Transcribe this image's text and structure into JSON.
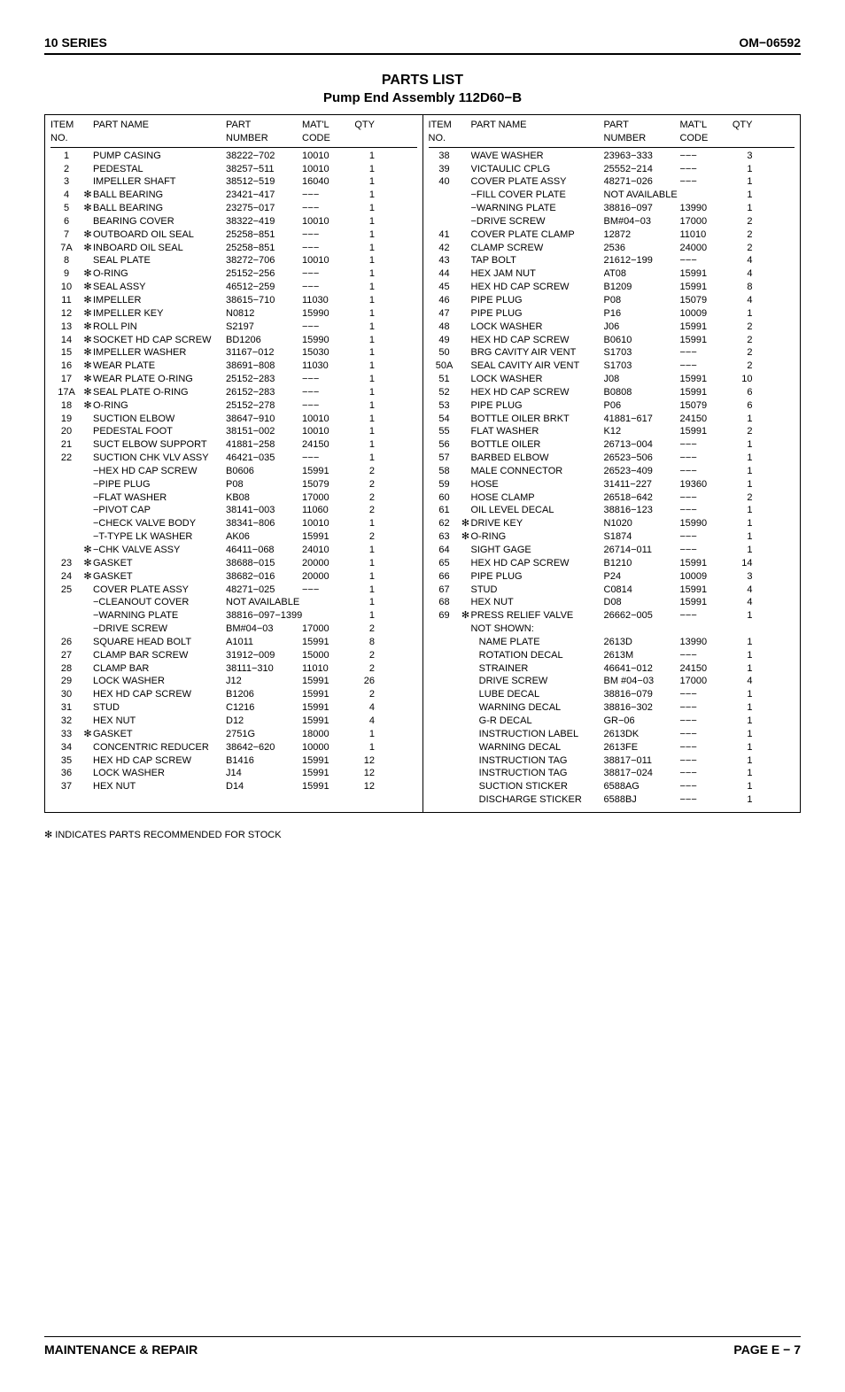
{
  "header": {
    "left": "10 SERIES",
    "right": "OM−06592"
  },
  "titles": {
    "line1": "PARTS LIST",
    "line2": "Pump End Assembly 112D60−B"
  },
  "columns": {
    "item": "ITEM\nNO.",
    "name": "PART NAME",
    "part": "PART\nNUMBER",
    "matl": "MAT'L\nCODE",
    "qty": "QTY"
  },
  "left_rows": [
    {
      "item": "1",
      "star": "",
      "name": "PUMP CASING",
      "part": "38222−702",
      "matl": "10010",
      "qty": "1"
    },
    {
      "item": "2",
      "star": "",
      "name": "PEDESTAL",
      "part": "38257−511",
      "matl": "10010",
      "qty": "1"
    },
    {
      "item": "3",
      "star": "",
      "name": "IMPELLER SHAFT",
      "part": "38512−519",
      "matl": "16040",
      "qty": "1"
    },
    {
      "item": "4",
      "star": "✻",
      "name": "BALL BEARING",
      "part": "23421−417",
      "matl": "−−−",
      "qty": "1"
    },
    {
      "item": "5",
      "star": "✻",
      "name": "BALL BEARING",
      "part": "23275−017",
      "matl": "−−−",
      "qty": "1"
    },
    {
      "item": "6",
      "star": "",
      "name": "BEARING COVER",
      "part": "38322−419",
      "matl": "10010",
      "qty": "1"
    },
    {
      "item": "7",
      "star": "✻",
      "name": "OUTBOARD OIL SEAL",
      "part": "25258−851",
      "matl": "−−−",
      "qty": "1"
    },
    {
      "item": "7A",
      "star": "✻",
      "name": "INBOARD OIL SEAL",
      "part": "25258−851",
      "matl": "−−−",
      "qty": "1"
    },
    {
      "item": "8",
      "star": "",
      "name": "SEAL PLATE",
      "part": "38272−706",
      "matl": "10010",
      "qty": "1"
    },
    {
      "item": "9",
      "star": "✻",
      "name": "O-RING",
      "part": "25152−256",
      "matl": "−−−",
      "qty": "1"
    },
    {
      "item": "10",
      "star": "✻",
      "name": "SEAL ASSY",
      "part": "46512−259",
      "matl": "−−−",
      "qty": "1"
    },
    {
      "item": "11",
      "star": "✻",
      "name": "IMPELLER",
      "part": "38615−710",
      "matl": "11030",
      "qty": "1"
    },
    {
      "item": "12",
      "star": "✻",
      "name": "IMPELLER KEY",
      "part": "N0812",
      "matl": "15990",
      "qty": "1"
    },
    {
      "item": "13",
      "star": "✻",
      "name": "ROLL PIN",
      "part": "S2197",
      "matl": "−−−",
      "qty": "1"
    },
    {
      "item": "14",
      "star": "✻",
      "name": "SOCKET HD CAP SCREW",
      "part": "BD1206",
      "matl": "15990",
      "qty": "1"
    },
    {
      "item": "15",
      "star": "✻",
      "name": "IMPELLER WASHER",
      "part": "31167−012",
      "matl": "15030",
      "qty": "1"
    },
    {
      "item": "16",
      "star": "✻",
      "name": "WEAR PLATE",
      "part": "38691−808",
      "matl": "11030",
      "qty": "1"
    },
    {
      "item": "17",
      "star": "✻",
      "name": "WEAR PLATE O-RING",
      "part": "25152−283",
      "matl": "−−−",
      "qty": "1"
    },
    {
      "item": "17A",
      "star": "✻",
      "name": "SEAL PLATE O-RING",
      "part": "26152−283",
      "matl": "−−−",
      "qty": "1"
    },
    {
      "item": "18",
      "star": "✻",
      "name": "O-RING",
      "part": "25152−278",
      "matl": "−−−",
      "qty": "1"
    },
    {
      "item": "19",
      "star": "",
      "name": "SUCTION ELBOW",
      "part": "38647−910",
      "matl": "10010",
      "qty": "1"
    },
    {
      "item": "20",
      "star": "",
      "name": "PEDESTAL FOOT",
      "part": "38151−002",
      "matl": "10010",
      "qty": "1"
    },
    {
      "item": "21",
      "star": "",
      "name": "SUCT ELBOW SUPPORT",
      "part": "41881−258",
      "matl": "24150",
      "qty": "1"
    },
    {
      "item": "22",
      "star": "",
      "name": "SUCTION CHK VLV ASSY",
      "part": "46421−035",
      "matl": "−−−",
      "qty": "1"
    },
    {
      "item": "",
      "star": "",
      "name": "−HEX HD CAP SCREW",
      "part": "B0606",
      "matl": "15991",
      "qty": "2"
    },
    {
      "item": "",
      "star": "",
      "name": "−PIPE PLUG",
      "part": "P08",
      "matl": "15079",
      "qty": "2"
    },
    {
      "item": "",
      "star": "",
      "name": "−FLAT WASHER",
      "part": "KB08",
      "matl": "17000",
      "qty": "2"
    },
    {
      "item": "",
      "star": "",
      "name": "−PIVOT CAP",
      "part": "38141−003",
      "matl": "11060",
      "qty": "2"
    },
    {
      "item": "",
      "star": "",
      "name": "−CHECK VALVE BODY",
      "part": "38341−806",
      "matl": "10010",
      "qty": "1"
    },
    {
      "item": "",
      "star": "",
      "name": "−T-TYPE LK WASHER",
      "part": "AK06",
      "matl": "15991",
      "qty": "2"
    },
    {
      "item": "",
      "star": "✻",
      "name": "−CHK VALVE ASSY",
      "part": "46411−068",
      "matl": "24010",
      "qty": "1"
    },
    {
      "item": "23",
      "star": "✻",
      "name": "GASKET",
      "part": "38688−015",
      "matl": "20000",
      "qty": "1"
    },
    {
      "item": "24",
      "star": "✻",
      "name": "GASKET",
      "part": "38682−016",
      "matl": "20000",
      "qty": "1"
    },
    {
      "item": "25",
      "star": "",
      "name": "COVER PLATE ASSY",
      "part": "48271−025",
      "matl": "−−−",
      "qty": "1"
    },
    {
      "item": "",
      "star": "",
      "name": "−CLEANOUT COVER",
      "part": "NOT AVAILABLE",
      "matl": "",
      "qty": "1"
    },
    {
      "item": "",
      "star": "",
      "name": "−WARNING PLATE",
      "part": "38816−097−13990",
      "matl": "",
      "qty": "1"
    },
    {
      "item": "",
      "star": "",
      "name": "−DRIVE SCREW",
      "part": "BM#04−03",
      "matl": "17000",
      "qty": "2"
    },
    {
      "item": "26",
      "star": "",
      "name": "SQUARE HEAD BOLT",
      "part": "A1011",
      "matl": "15991",
      "qty": "8"
    },
    {
      "item": "27",
      "star": "",
      "name": "CLAMP BAR SCREW",
      "part": "31912−009",
      "matl": "15000",
      "qty": "2"
    },
    {
      "item": "28",
      "star": "",
      "name": "CLAMP BAR",
      "part": "38111−310",
      "matl": "11010",
      "qty": "2"
    },
    {
      "item": "29",
      "star": "",
      "name": "LOCK WASHER",
      "part": "J12",
      "matl": "15991",
      "qty": "26"
    },
    {
      "item": "30",
      "star": "",
      "name": "HEX HD CAP SCREW",
      "part": "B1206",
      "matl": "15991",
      "qty": "2"
    },
    {
      "item": "31",
      "star": "",
      "name": "STUD",
      "part": "C1216",
      "matl": "15991",
      "qty": "4"
    },
    {
      "item": "32",
      "star": "",
      "name": "HEX NUT",
      "part": "D12",
      "matl": "15991",
      "qty": "4"
    },
    {
      "item": "33",
      "star": "✻",
      "name": "GASKET",
      "part": "2751G",
      "matl": "18000",
      "qty": "1"
    },
    {
      "item": "34",
      "star": "",
      "name": "CONCENTRIC REDUCER",
      "part": "38642−620",
      "matl": "10000",
      "qty": "1"
    },
    {
      "item": "35",
      "star": "",
      "name": "HEX HD CAP SCREW",
      "part": "B1416",
      "matl": "15991",
      "qty": "12"
    },
    {
      "item": "36",
      "star": "",
      "name": "LOCK WASHER",
      "part": "J14",
      "matl": "15991",
      "qty": "12"
    },
    {
      "item": "37",
      "star": "",
      "name": "HEX NUT",
      "part": "D14",
      "matl": "15991",
      "qty": "12"
    }
  ],
  "right_rows": [
    {
      "item": "38",
      "star": "",
      "name": "WAVE WASHER",
      "part": "23963−333",
      "matl": "−−−",
      "qty": "3"
    },
    {
      "item": "39",
      "star": "",
      "name": "VICTAULIC CPLG",
      "part": "25552−214",
      "matl": "−−−",
      "qty": "1"
    },
    {
      "item": "40",
      "star": "",
      "name": "COVER PLATE ASSY",
      "part": "48271−026",
      "matl": "−−−",
      "qty": "1"
    },
    {
      "item": "",
      "star": "",
      "name": "−FILL COVER PLATE",
      "part": "NOT AVAILABLE",
      "matl": "",
      "qty": "1"
    },
    {
      "item": "",
      "star": "",
      "name": "−WARNING PLATE",
      "part": "38816−097",
      "matl": "13990",
      "qty": "1"
    },
    {
      "item": "",
      "star": "",
      "name": "−DRIVE SCREW",
      "part": "BM#04−03",
      "matl": "17000",
      "qty": "2"
    },
    {
      "item": "41",
      "star": "",
      "name": "COVER PLATE CLAMP",
      "part": "12872",
      "matl": "11010",
      "qty": "2"
    },
    {
      "item": "42",
      "star": "",
      "name": "CLAMP SCREW",
      "part": "2536",
      "matl": "24000",
      "qty": "2"
    },
    {
      "item": "43",
      "star": "",
      "name": "TAP BOLT",
      "part": "21612−199",
      "matl": "−−−",
      "qty": "4"
    },
    {
      "item": "44",
      "star": "",
      "name": "HEX JAM NUT",
      "part": "AT08",
      "matl": "15991",
      "qty": "4"
    },
    {
      "item": "45",
      "star": "",
      "name": "HEX HD CAP SCREW",
      "part": "B1209",
      "matl": "15991",
      "qty": "8"
    },
    {
      "item": "46",
      "star": "",
      "name": "PIPE PLUG",
      "part": "P08",
      "matl": "15079",
      "qty": "4"
    },
    {
      "item": "47",
      "star": "",
      "name": "PIPE PLUG",
      "part": "P16",
      "matl": "10009",
      "qty": "1"
    },
    {
      "item": "48",
      "star": "",
      "name": "LOCK WASHER",
      "part": "J06",
      "matl": "15991",
      "qty": "2"
    },
    {
      "item": "49",
      "star": "",
      "name": "HEX HD CAP SCREW",
      "part": "B0610",
      "matl": "15991",
      "qty": "2"
    },
    {
      "item": "50",
      "star": "",
      "name": "BRG CAVITY AIR VENT",
      "part": "S1703",
      "matl": "−−−",
      "qty": "2"
    },
    {
      "item": "50A",
      "star": "",
      "name": "SEAL CAVITY AIR VENT",
      "part": "S1703",
      "matl": "−−−",
      "qty": "2"
    },
    {
      "item": "51",
      "star": "",
      "name": "LOCK WASHER",
      "part": "J08",
      "matl": "15991",
      "qty": "10"
    },
    {
      "item": "52",
      "star": "",
      "name": "HEX HD CAP SCREW",
      "part": "B0808",
      "matl": "15991",
      "qty": "6"
    },
    {
      "item": "53",
      "star": "",
      "name": "PIPE PLUG",
      "part": "P06",
      "matl": "15079",
      "qty": "6"
    },
    {
      "item": "54",
      "star": "",
      "name": "BOTTLE OILER BRKT",
      "part": "41881−617",
      "matl": "24150",
      "qty": "1"
    },
    {
      "item": "55",
      "star": "",
      "name": "FLAT WASHER",
      "part": "K12",
      "matl": "15991",
      "qty": "2"
    },
    {
      "item": "56",
      "star": "",
      "name": "BOTTLE OILER",
      "part": "26713−004",
      "matl": "−−−",
      "qty": "1"
    },
    {
      "item": "57",
      "star": "",
      "name": "BARBED ELBOW",
      "part": "26523−506",
      "matl": "−−−",
      "qty": "1"
    },
    {
      "item": "58",
      "star": "",
      "name": "MALE CONNECTOR",
      "part": "26523−409",
      "matl": "−−−",
      "qty": "1"
    },
    {
      "item": "59",
      "star": "",
      "name": "HOSE",
      "part": "31411−227",
      "matl": "19360",
      "qty": "1"
    },
    {
      "item": "60",
      "star": "",
      "name": "HOSE CLAMP",
      "part": "26518−642",
      "matl": "−−−",
      "qty": "2"
    },
    {
      "item": "61",
      "star": "",
      "name": "OIL LEVEL DECAL",
      "part": "38816−123",
      "matl": "−−−",
      "qty": "1"
    },
    {
      "item": "62",
      "star": "✻",
      "name": "DRIVE KEY",
      "part": "N1020",
      "matl": "15990",
      "qty": "1"
    },
    {
      "item": "63",
      "star": "✻",
      "name": "O-RING",
      "part": "S1874",
      "matl": "−−−",
      "qty": "1"
    },
    {
      "item": "64",
      "star": "",
      "name": "SIGHT GAGE",
      "part": "26714−011",
      "matl": "−−−",
      "qty": "1"
    },
    {
      "item": "65",
      "star": "",
      "name": "HEX HD CAP SCREW",
      "part": "B1210",
      "matl": "15991",
      "qty": "14"
    },
    {
      "item": "66",
      "star": "",
      "name": "PIPE PLUG",
      "part": "P24",
      "matl": "10009",
      "qty": "3"
    },
    {
      "item": "67",
      "star": "",
      "name": "STUD",
      "part": "C0814",
      "matl": "15991",
      "qty": "4"
    },
    {
      "item": "68",
      "star": "",
      "name": "HEX NUT",
      "part": "D08",
      "matl": "15991",
      "qty": "4"
    },
    {
      "item": "69",
      "star": "✻",
      "name": "PRESS RELIEF VALVE",
      "part": "26662−005",
      "matl": "−−−",
      "qty": "1"
    },
    {
      "item": "",
      "star": "",
      "name": "NOT SHOWN:",
      "part": "",
      "matl": "",
      "qty": ""
    },
    {
      "item": "",
      "star": "",
      "name": "  NAME PLATE",
      "part": "2613D",
      "matl": "13990",
      "qty": "1"
    },
    {
      "item": "",
      "star": "",
      "name": "  ROTATION DECAL",
      "part": "2613M",
      "matl": "−−−",
      "qty": "1"
    },
    {
      "item": "",
      "star": "",
      "name": "  STRAINER",
      "part": "46641−012",
      "matl": "24150",
      "qty": "1"
    },
    {
      "item": "",
      "star": "",
      "name": "  DRIVE SCREW",
      "part": "BM #04−03",
      "matl": "17000",
      "qty": "4"
    },
    {
      "item": "",
      "star": "",
      "name": "  LUBE DECAL",
      "part": "38816−079",
      "matl": "−−−",
      "qty": "1"
    },
    {
      "item": "",
      "star": "",
      "name": "  WARNING DECAL",
      "part": "38816−302",
      "matl": "−−−",
      "qty": "1"
    },
    {
      "item": "",
      "star": "",
      "name": "  G-R DECAL",
      "part": "GR−06",
      "matl": "−−−",
      "qty": "1"
    },
    {
      "item": "",
      "star": "",
      "name": "  INSTRUCTION LABEL",
      "part": "2613DK",
      "matl": "−−−",
      "qty": "1"
    },
    {
      "item": "",
      "star": "",
      "name": "  WARNING DECAL",
      "part": "2613FE",
      "matl": "−−−",
      "qty": "1"
    },
    {
      "item": "",
      "star": "",
      "name": "  INSTRUCTION TAG",
      "part": "38817−011",
      "matl": "−−−",
      "qty": "1"
    },
    {
      "item": "",
      "star": "",
      "name": "  INSTRUCTION TAG",
      "part": "38817−024",
      "matl": "−−−",
      "qty": "1"
    },
    {
      "item": "",
      "star": "",
      "name": "  SUCTION STICKER",
      "part": "6588AG",
      "matl": "−−−",
      "qty": "1"
    },
    {
      "item": "",
      "star": "",
      "name": "  DISCHARGE STICKER",
      "part": "6588BJ",
      "matl": "−−−",
      "qty": "1"
    }
  ],
  "footnote": "✻ INDICATES PARTS RECOMMENDED FOR STOCK",
  "footer": {
    "left": "MAINTENANCE & REPAIR",
    "right": "PAGE E − 7"
  }
}
